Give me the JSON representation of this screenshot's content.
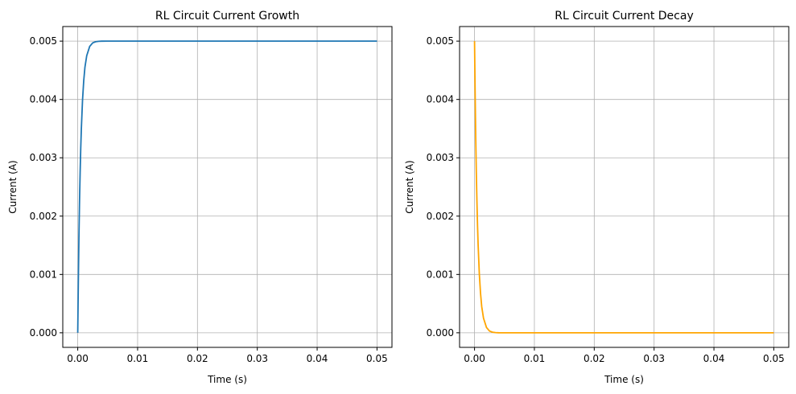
{
  "chart_data": [
    {
      "type": "line",
      "title": "RL Circuit Current Growth",
      "xlabel": "Time (s)",
      "ylabel": "Current (A)",
      "xlim": [
        -0.0025,
        0.0525
      ],
      "ylim": [
        -0.00025,
        0.00525
      ],
      "xticks": [
        0.0,
        0.01,
        0.02,
        0.03,
        0.04,
        0.05
      ],
      "xtick_labels": [
        "0.00",
        "0.01",
        "0.02",
        "0.03",
        "0.04",
        "0.05"
      ],
      "yticks": [
        0.0,
        0.001,
        0.002,
        0.003,
        0.004,
        0.005
      ],
      "ytick_labels": [
        "0.000",
        "0.001",
        "0.002",
        "0.003",
        "0.004",
        "0.005"
      ],
      "grid": true,
      "series": [
        {
          "color": "#1f77b4",
          "x": [
            0.0,
            0.0001,
            0.0002,
            0.0003,
            0.0004,
            0.0005,
            0.0006,
            0.0008,
            0.001,
            0.0012,
            0.0015,
            0.002,
            0.0025,
            0.003,
            0.0035,
            0.004,
            0.005,
            0.01,
            0.02,
            0.03,
            0.04,
            0.05
          ],
          "y": [
            0.0,
            0.00088,
            0.00165,
            0.00226,
            0.00275,
            0.00316,
            0.00349,
            0.00399,
            0.00432,
            0.00455,
            0.00475,
            0.00491,
            0.00497,
            0.00499,
            0.004997,
            0.004999,
            0.005,
            0.005,
            0.005,
            0.005,
            0.005,
            0.005
          ]
        }
      ]
    },
    {
      "type": "line",
      "title": "RL Circuit Current Decay",
      "xlabel": "Time (s)",
      "ylabel": "Current (A)",
      "xlim": [
        -0.0025,
        0.0525
      ],
      "ylim": [
        -0.00025,
        0.00525
      ],
      "xticks": [
        0.0,
        0.01,
        0.02,
        0.03,
        0.04,
        0.05
      ],
      "xtick_labels": [
        "0.00",
        "0.01",
        "0.02",
        "0.03",
        "0.04",
        "0.05"
      ],
      "yticks": [
        0.0,
        0.001,
        0.002,
        0.003,
        0.004,
        0.005
      ],
      "ytick_labels": [
        "0.000",
        "0.001",
        "0.002",
        "0.003",
        "0.004",
        "0.005"
      ],
      "grid": true,
      "series": [
        {
          "color": "#ffa500",
          "x": [
            0.0,
            0.0001,
            0.0002,
            0.0003,
            0.0004,
            0.0005,
            0.0006,
            0.0008,
            0.001,
            0.0012,
            0.0015,
            0.002,
            0.0025,
            0.003,
            0.0035,
            0.004,
            0.005,
            0.01,
            0.02,
            0.03,
            0.04,
            0.05
          ],
          "y": [
            0.005,
            0.00412,
            0.00335,
            0.00274,
            0.00225,
            0.00184,
            0.00151,
            0.00101,
            0.00068,
            0.00045,
            0.00025,
            9e-05,
            3e-05,
            1e-05,
            3e-06,
            1e-06,
            0.0,
            0.0,
            0.0,
            0.0,
            0.0,
            0.0
          ]
        }
      ]
    }
  ]
}
